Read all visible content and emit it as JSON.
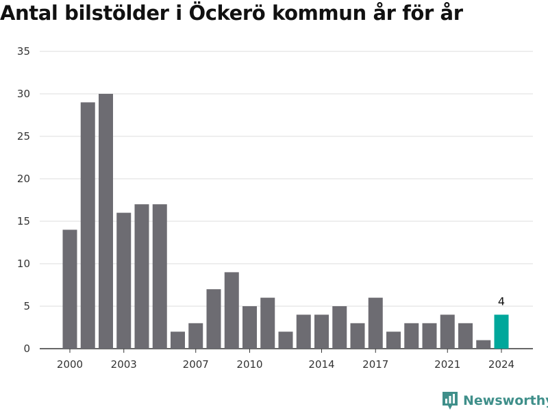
{
  "chart_data": {
    "type": "bar",
    "title": "Antal bilstölder i Öckerö kommun år för år",
    "categories": [
      "2000",
      "2001",
      "2002",
      "2003",
      "2004",
      "2005",
      "2006",
      "2007",
      "2008",
      "2009",
      "2010",
      "2011",
      "2012",
      "2013",
      "2014",
      "2015",
      "2016",
      "2017",
      "2018",
      "2019",
      "2020",
      "2021",
      "2022",
      "2023",
      "2024"
    ],
    "values": [
      14,
      29,
      30,
      16,
      17,
      17,
      2,
      3,
      7,
      9,
      5,
      6,
      2,
      4,
      4,
      5,
      3,
      6,
      2,
      3,
      3,
      4,
      3,
      1,
      4
    ],
    "x_tick_labels": [
      "2000",
      "2003",
      "2007",
      "2010",
      "2014",
      "2017",
      "2021",
      "2024"
    ],
    "y_ticks": [
      0,
      5,
      10,
      15,
      20,
      25,
      30,
      35
    ],
    "ylim": [
      0,
      35
    ],
    "grid": true,
    "highlight": {
      "category": "2024",
      "label": "4"
    },
    "colors": {
      "bar": "#6d6c72",
      "highlight": "#00a79b",
      "grid": "#dddddd",
      "axis": "#333333"
    }
  },
  "branding": {
    "logo_text": "Newsworthy",
    "logo_icon": "bar-chart-pin-icon",
    "logo_color": "#3f8f8a"
  }
}
